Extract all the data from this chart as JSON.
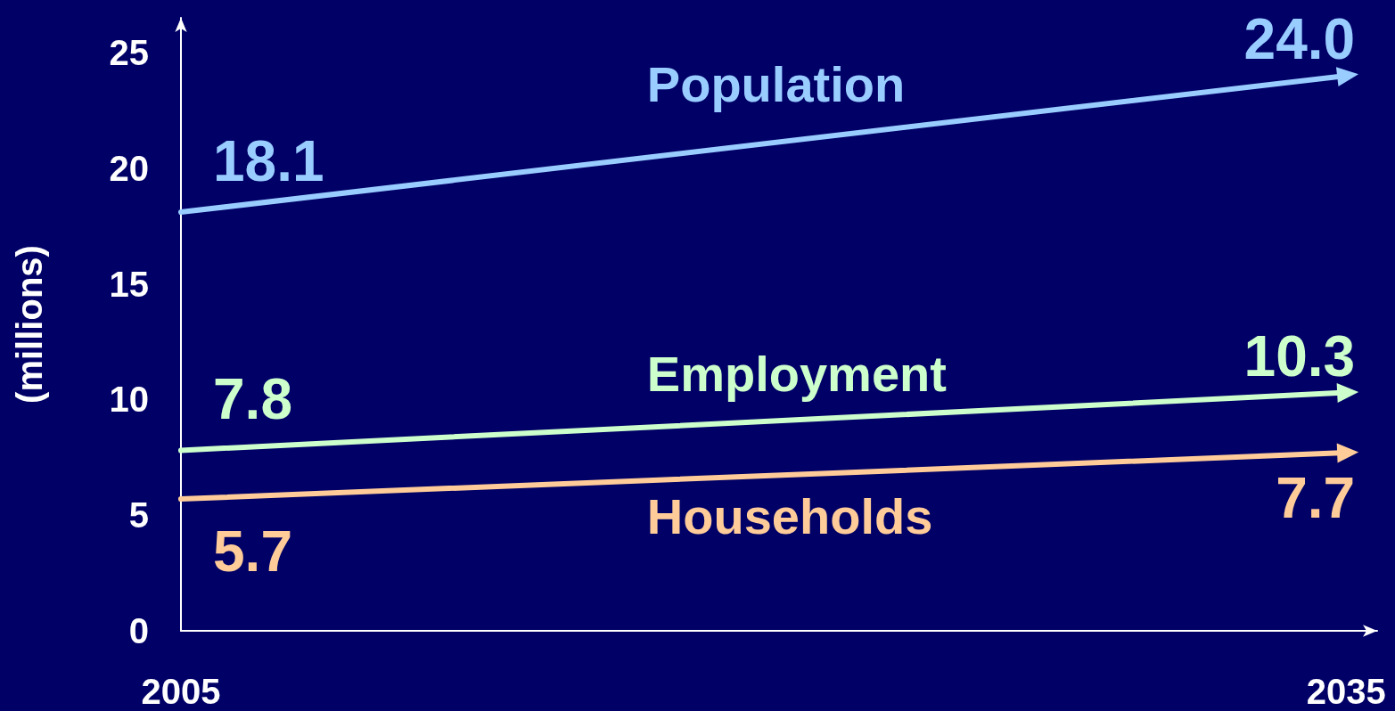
{
  "chart_data": {
    "type": "line",
    "ylabel": "(millions)",
    "x": [
      2005,
      2035
    ],
    "xlim": [
      2005,
      2035.8
    ],
    "xticks": [
      2005,
      2035
    ],
    "ylim": [
      0,
      26.5
    ],
    "yticks": [
      0,
      5,
      10,
      15,
      20,
      25
    ],
    "grid": false,
    "legend": false,
    "series": [
      {
        "name": "Population",
        "color": "#99ccff",
        "values": [
          18.1,
          24.0
        ],
        "value_labels": [
          "18.1",
          "24.0"
        ]
      },
      {
        "name": "Employment",
        "color": "#ccffcc",
        "values": [
          7.8,
          10.3
        ],
        "value_labels": [
          "7.8",
          "10.3"
        ]
      },
      {
        "name": "Households",
        "color": "#ffcc99",
        "values": [
          5.7,
          7.7
        ],
        "value_labels": [
          "5.7",
          "7.7"
        ]
      }
    ]
  }
}
